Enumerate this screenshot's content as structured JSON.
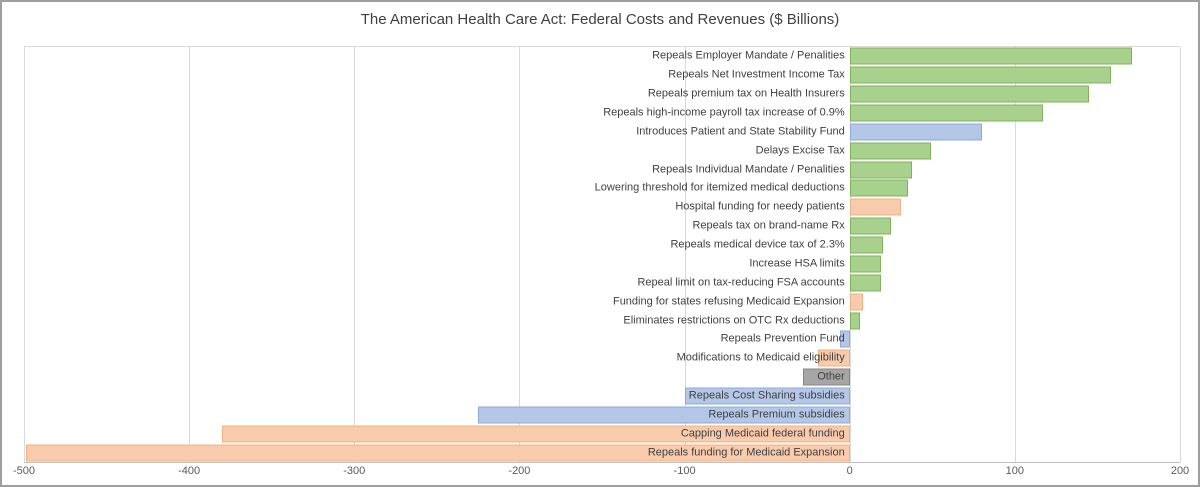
{
  "window": {
    "background": "#ffffff",
    "border_color": "#9e9e9e"
  },
  "chart_data": {
    "type": "bar",
    "orientation": "horizontal",
    "title": "The American Health Care Act: Federal Costs and Revenues ($ Billions)",
    "xlabel": "",
    "ylabel": "",
    "xlim": [
      -500,
      200
    ],
    "x_ticks": [
      -500,
      -400,
      -300,
      -200,
      -100,
      0,
      100,
      200
    ],
    "grid": true,
    "legend": "none",
    "categories": [
      "Repeals Employer Mandate / Penalities",
      "Repeals Net Investment Income Tax",
      "Repeals premium tax on Health Insurers",
      "Repeals high-income payroll tax increase of 0.9%",
      "Introduces Patient and State Stability Fund",
      "Delays Excise Tax",
      "Repeals Individual Mandate / Penalities",
      "Lowering threshold for itemized medical deductions",
      "Hospital funding for needy patients",
      "Repeals tax on brand-name Rx",
      "Repeals medical device tax of 2.3%",
      "Increase HSA limits",
      "Repeal limit on tax-reducing FSA accounts",
      "Funding for states refusing Medicaid Expansion",
      "Eliminates restrictions on OTC Rx deductions",
      "Repeals Prevention Fund",
      "Modifications to Medicaid eligibility",
      "Other",
      "Repeals Cost Sharing subsidies",
      "Repeals Premium subsidies",
      "Capping Medicaid federal funding",
      "Repeals funding for Medicaid Expansion"
    ],
    "values": [
      171,
      158,
      145,
      117,
      80,
      49,
      38,
      35,
      31,
      25,
      20,
      19,
      19,
      8,
      6,
      -6,
      -19,
      -28,
      -100,
      -225,
      -380,
      -499
    ],
    "bar_color_keys": [
      "green",
      "green",
      "green",
      "green",
      "blue",
      "green",
      "green",
      "green",
      "orange",
      "green",
      "green",
      "green",
      "green",
      "orange",
      "green",
      "blue",
      "orange",
      "gray",
      "blue",
      "blue",
      "orange",
      "orange"
    ],
    "palette": {
      "green": {
        "fill": "#A9D18E",
        "border": "#7FB35B"
      },
      "blue": {
        "fill": "#B4C7E7",
        "border": "#8FAADC"
      },
      "orange": {
        "fill": "#F8CBAD",
        "border": "#F0B183"
      },
      "gray": {
        "fill": "#A6A6A6",
        "border": "#858585"
      }
    },
    "gridline_color": "#d9d9d9",
    "axis_line_color": "#bfbfbf",
    "title_color": "#404040",
    "label_color": "#404040",
    "tick_color": "#595959"
  }
}
